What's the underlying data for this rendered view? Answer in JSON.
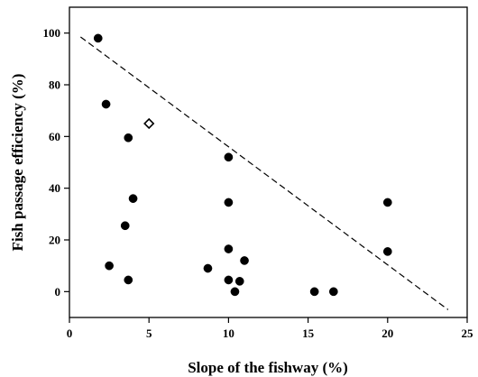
{
  "chart_data": {
    "type": "scatter",
    "title": "",
    "xlabel": "Slope of the fishway (%)",
    "ylabel": "Fish passage efficiency (%)",
    "xlim": [
      0,
      25
    ],
    "ylim": [
      -10,
      110
    ],
    "xticks": [
      "0",
      "5",
      "10",
      "15",
      "20",
      "25"
    ],
    "yticks": [
      "0",
      "20",
      "40",
      "60",
      "80",
      "100"
    ],
    "grid": false,
    "legend": "none",
    "series": [
      {
        "marker": "filled-circle",
        "color": "#000000",
        "points": [
          {
            "x": 1.8,
            "y": 98
          },
          {
            "x": 2.3,
            "y": 72.5
          },
          {
            "x": 3.7,
            "y": 59.5
          },
          {
            "x": 4.0,
            "y": 36
          },
          {
            "x": 3.5,
            "y": 25.5
          },
          {
            "x": 2.5,
            "y": 10
          },
          {
            "x": 3.7,
            "y": 4.5
          },
          {
            "x": 10.0,
            "y": 52
          },
          {
            "x": 10.0,
            "y": 34.5
          },
          {
            "x": 10.0,
            "y": 16.5
          },
          {
            "x": 8.7,
            "y": 9
          },
          {
            "x": 11.0,
            "y": 12
          },
          {
            "x": 10.0,
            "y": 4.5
          },
          {
            "x": 10.7,
            "y": 4
          },
          {
            "x": 10.4,
            "y": 0
          },
          {
            "x": 15.4,
            "y": 0
          },
          {
            "x": 16.6,
            "y": 0
          },
          {
            "x": 20.0,
            "y": 34.5
          },
          {
            "x": 20.0,
            "y": 15.5
          }
        ]
      },
      {
        "marker": "open-diamond",
        "color": "#000000",
        "points": [
          {
            "x": 5.0,
            "y": 65
          }
        ]
      }
    ],
    "reference_line": {
      "style": "dashed",
      "color": "#000000",
      "from": {
        "x": 0.7,
        "y": 98.5
      },
      "to": {
        "x": 23.8,
        "y": -7
      }
    }
  }
}
